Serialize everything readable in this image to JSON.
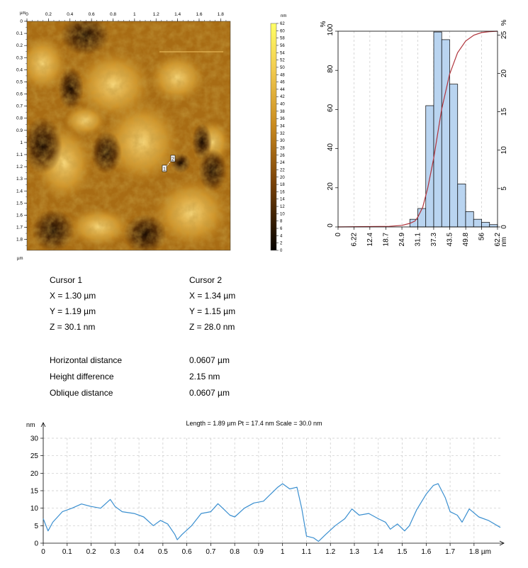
{
  "afm": {
    "x_unit": "µm",
    "y_unit": "µm",
    "x_ticks": [
      "0",
      "0.2",
      "0.4",
      "0.6",
      "0.8",
      "1",
      "1.2",
      "1.4",
      "1.6",
      "1.8"
    ],
    "y_ticks": [
      "0",
      "0.1",
      "0.2",
      "0.3",
      "0.4",
      "0.5",
      "0.6",
      "0.7",
      "0.8",
      "0.9",
      "1",
      "1.1",
      "1.2",
      "1.3",
      "1.4",
      "1.5",
      "1.6",
      "1.7",
      "1.8"
    ],
    "marker1": "1",
    "marker2": "2"
  },
  "colorbar": {
    "unit": "nm",
    "ticks": [
      "62",
      "60",
      "58",
      "56",
      "54",
      "52",
      "50",
      "48",
      "46",
      "44",
      "42",
      "40",
      "38",
      "36",
      "34",
      "32",
      "30",
      "28",
      "26",
      "24",
      "22",
      "20",
      "18",
      "16",
      "14",
      "12",
      "10",
      "8",
      "6",
      "4",
      "2",
      "0"
    ]
  },
  "cursors": {
    "c1": {
      "title": "Cursor 1",
      "x": "X = 1.30 µm",
      "y": "Y = 1.19 µm",
      "z": "Z = 30.1 nm"
    },
    "c2": {
      "title": "Cursor 2",
      "x": "X = 1.34 µm",
      "y": "Y = 1.15 µm",
      "z": "Z = 28.0 nm"
    }
  },
  "measurements": [
    {
      "label": "Horizontal distance",
      "value": "0.0607 µm"
    },
    {
      "label": "Height difference",
      "value": "2.15 nm"
    },
    {
      "label": "Oblique distance",
      "value": "0.0607 µm"
    }
  ],
  "chart_data": [
    {
      "type": "bar",
      "name": "height-histogram",
      "xlabel": "nm",
      "left_axis_label": "%",
      "right_axis_label": "%",
      "x_tick_labels": [
        "0",
        "6.22",
        "12.4",
        "18.7",
        "24.9",
        "31.1",
        "37.3",
        "43.5",
        "49.8",
        "56",
        "62.2"
      ],
      "left_ticks": [
        "0",
        "20",
        "40",
        "60",
        "80",
        "100"
      ],
      "right_ticks": [
        "0",
        "5",
        "10",
        "15",
        "20",
        "25"
      ],
      "xlim": [
        0,
        62.2
      ],
      "right_ylim": [
        0,
        25.5
      ],
      "bin_edges": [
        27.99,
        31.1,
        34.21,
        37.32,
        40.43,
        43.54,
        46.65,
        49.76,
        52.87,
        55.98,
        59.09,
        62.2
      ],
      "values": [
        1.0,
        2.4,
        15.8,
        25.4,
        24.4,
        18.6,
        5.6,
        2.0,
        1.0,
        0.6,
        0.3
      ],
      "cumulative": {
        "x": [
          0,
          20,
          24.9,
          28,
          30,
          31.1,
          33,
          35,
          37.3,
          40.4,
          43.5,
          46.6,
          49.8,
          53,
          56,
          59,
          62.2
        ],
        "y": [
          0,
          0.3,
          0.8,
          1.8,
          3,
          5,
          10,
          20,
          35,
          60,
          78,
          89,
          95,
          98,
          99.3,
          99.8,
          100
        ]
      },
      "bar_color": "#b9d4f0",
      "curve_color": "#b0343c",
      "grid": true
    },
    {
      "type": "line",
      "name": "line-profile",
      "title": "Length = 1.89 µm  Pt = 17.4 nm  Scale = 30.0 nm",
      "xlabel": "µm",
      "ylabel": "nm",
      "x_ticks": [
        "0",
        "0.1",
        "0.2",
        "0.3",
        "0.4",
        "0.5",
        "0.6",
        "0.7",
        "0.8",
        "0.9",
        "1",
        "1.1",
        "1.2",
        "1.3",
        "1.4",
        "1.5",
        "1.6",
        "1.7",
        "1.8"
      ],
      "y_ticks": [
        "0",
        "5",
        "10",
        "15",
        "20",
        "25",
        "30"
      ],
      "xlim": [
        0,
        1.91
      ],
      "ylim": [
        0,
        30
      ],
      "x": [
        0,
        0.02,
        0.04,
        0.08,
        0.12,
        0.16,
        0.2,
        0.24,
        0.28,
        0.3,
        0.33,
        0.38,
        0.42,
        0.46,
        0.49,
        0.52,
        0.55,
        0.56,
        0.58,
        0.62,
        0.66,
        0.7,
        0.73,
        0.75,
        0.78,
        0.8,
        0.84,
        0.88,
        0.92,
        0.95,
        0.98,
        1.0,
        1.03,
        1.06,
        1.08,
        1.1,
        1.13,
        1.15,
        1.18,
        1.22,
        1.26,
        1.29,
        1.32,
        1.36,
        1.4,
        1.43,
        1.45,
        1.48,
        1.51,
        1.53,
        1.56,
        1.6,
        1.63,
        1.65,
        1.68,
        1.7,
        1.73,
        1.75,
        1.78,
        1.82,
        1.86,
        1.91
      ],
      "y": [
        7,
        3.5,
        6,
        9,
        10,
        11.2,
        10.5,
        10,
        12.5,
        10.5,
        9,
        8.5,
        7.5,
        5,
        6.5,
        5.5,
        2.5,
        1,
        2.5,
        5,
        8.5,
        9,
        11.3,
        10,
        8,
        7.5,
        10,
        11.5,
        12,
        14,
        16,
        17,
        15.5,
        16,
        10,
        2,
        1.5,
        0.5,
        2.5,
        5,
        7,
        9.8,
        8,
        8.5,
        7,
        6,
        4,
        5.5,
        3.5,
        5,
        9.5,
        14,
        16.5,
        17,
        13,
        9,
        8,
        6,
        9.8,
        7.5,
        6.5,
        4.5
      ],
      "line_color": "#3a8fd0",
      "grid": true
    }
  ]
}
